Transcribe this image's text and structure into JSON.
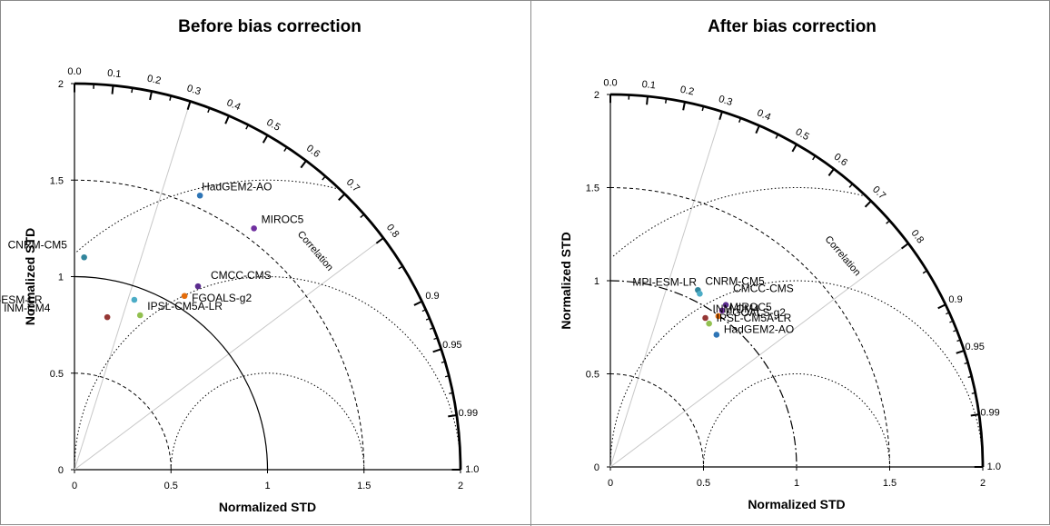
{
  "chart_data": [
    {
      "type": "scatter",
      "subtype": "taylor-diagram",
      "title": "Before bias correction",
      "xlabel": "Normalized STD",
      "ylabel": "Normalized STD",
      "correlation_label": "Correlation",
      "xlim": [
        0,
        2
      ],
      "ylim": [
        0,
        2
      ],
      "x_ticks": [
        "0",
        "0.5",
        "1",
        "1.5",
        "2"
      ],
      "y_ticks": [
        "0",
        "0.5",
        "1",
        "1.5",
        "2"
      ],
      "correlation_ticks": [
        "0.0",
        "0.1",
        "0.2",
        "0.3",
        "0.4",
        "0.5",
        "0.6",
        "0.7",
        "0.8",
        "0.9",
        "0.95",
        "0.99",
        "1.0"
      ],
      "reference_std_circle": "solid",
      "points": [
        {
          "name": "HadGEM2-AO",
          "x": 0.65,
          "y": 1.42,
          "color": "#2e75b6"
        },
        {
          "name": "MIROC5",
          "x": 0.93,
          "y": 1.25,
          "color": "#7030a0"
        },
        {
          "name": "CNRM-CM5",
          "x": 0.05,
          "y": 1.1,
          "color": "#31859c"
        },
        {
          "name": "CMCC-CMS",
          "x": 0.64,
          "y": 0.95,
          "color": "#5b2c8f"
        },
        {
          "name": "MPI-ESM-LR",
          "x": 0.31,
          "y": 0.88,
          "color": "#4bacc6"
        },
        {
          "name": "FGOALS-g2",
          "x": 0.57,
          "y": 0.9,
          "color": "#e46c0a"
        },
        {
          "name": "INM-CM4",
          "x": 0.17,
          "y": 0.79,
          "color": "#953735"
        },
        {
          "name": "IPSL-CM5A-LR",
          "x": 0.34,
          "y": 0.8,
          "color": "#92c050"
        }
      ]
    },
    {
      "type": "scatter",
      "subtype": "taylor-diagram",
      "title": "After bias correction",
      "xlabel": "Normalized STD",
      "ylabel": "Normalized STD",
      "correlation_label": "Correlation",
      "xlim": [
        0,
        2
      ],
      "ylim": [
        0,
        2
      ],
      "x_ticks": [
        "0",
        "0.5",
        "1",
        "1.5",
        "2"
      ],
      "y_ticks": [
        "0",
        "0.5",
        "1",
        "1.5",
        "2"
      ],
      "correlation_ticks": [
        "0.0",
        "0.1",
        "0.2",
        "0.3",
        "0.4",
        "0.5",
        "0.6",
        "0.7",
        "0.8",
        "0.9",
        "0.95",
        "0.99",
        "1.0"
      ],
      "reference_std_circle": "dash-dot",
      "points": [
        {
          "name": "CNRM-CM5",
          "x": 0.47,
          "y": 0.95,
          "color": "#31859c"
        },
        {
          "name": "MPI-ESM-LR",
          "x": 0.48,
          "y": 0.93,
          "color": "#4bacc6"
        },
        {
          "name": "CMCC-CMS",
          "x": 0.62,
          "y": 0.87,
          "color": "#5b2c8f"
        },
        {
          "name": "MIROC5",
          "x": 0.6,
          "y": 0.84,
          "color": "#7030a0"
        },
        {
          "name": "INM-CM4",
          "x": 0.51,
          "y": 0.8,
          "color": "#953735"
        },
        {
          "name": "FGOALS-g2",
          "x": 0.58,
          "y": 0.81,
          "color": "#e46c0a"
        },
        {
          "name": "IPSL-CM5A-LR",
          "x": 0.53,
          "y": 0.77,
          "color": "#92c050"
        },
        {
          "name": "HadGEM2-AO",
          "x": 0.57,
          "y": 0.71,
          "color": "#2e75b6"
        }
      ]
    }
  ]
}
